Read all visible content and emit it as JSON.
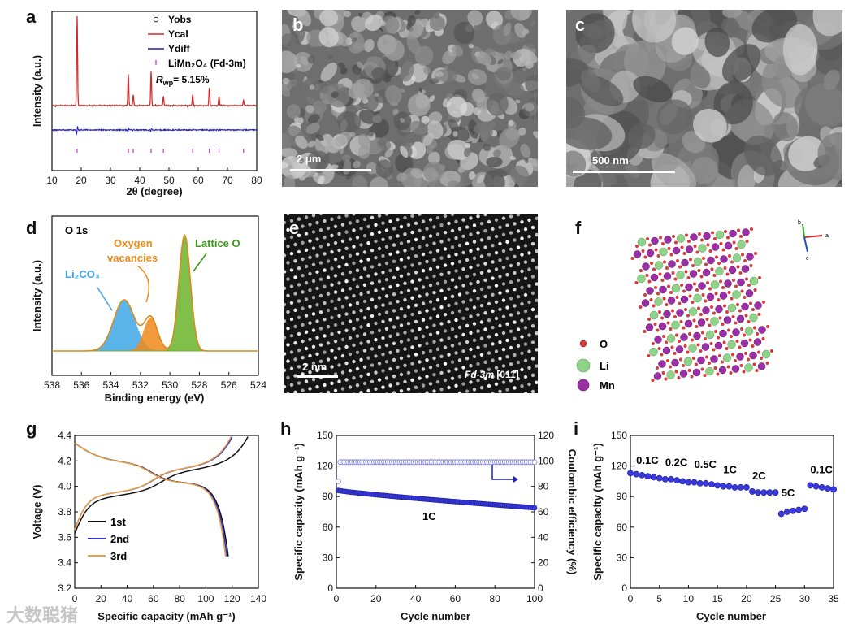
{
  "figure": {
    "panel_letters": [
      "a",
      "b",
      "c",
      "d",
      "e",
      "f",
      "g",
      "h",
      "i"
    ],
    "watermark_text": "大数聪猪"
  },
  "panel_a": {
    "legend": [
      "Yobs",
      "Ycal",
      "Ydiff",
      "LiMn₂O₄ (Fd-3m)"
    ],
    "rwp_label": "R",
    "rwp_sub": "wp",
    "rwp_value": "= 5.15%",
    "colors": {
      "obs": "#333333",
      "cal": "#d62728",
      "diff": "#1f1fbf",
      "bragg": "#cc33cc"
    }
  },
  "panel_b": {
    "scale_label": "2 μm"
  },
  "panel_c": {
    "scale_label": "500 nm"
  },
  "panel_d": {
    "title": "O 1s",
    "annotations": {
      "li2co3": "Li₂CO₃",
      "oxygen": "Oxygen",
      "vacancies": "vacancies",
      "lattice": "Lattice O"
    },
    "colors": {
      "li2co3": "#3ea6e6",
      "vac": "#f08a1c",
      "lattice": "#6ab52a",
      "envelope": "#d88a1a"
    }
  },
  "panel_e": {
    "scale_label": "2 nm",
    "caption_italic": "Fd-3m",
    "caption_rest": " [011]"
  },
  "panel_f": {
    "legend": [
      "O",
      "Li",
      "Mn"
    ],
    "axes": [
      "a",
      "b",
      "c"
    ],
    "colors": {
      "O": "#d93a3a",
      "Li": "#8fd38a",
      "Mn": "#9b2fa6"
    }
  },
  "chart_data": [
    {
      "id": "a",
      "type": "line",
      "title": "",
      "xlabel": "2θ (degree)",
      "ylabel": "Intensity (a.u.)",
      "xlim": [
        10,
        80
      ],
      "xticks": [
        10,
        20,
        30,
        40,
        50,
        60,
        70,
        80
      ],
      "peaks": [
        {
          "x": 18.6,
          "h": 1.0
        },
        {
          "x": 36.1,
          "h": 0.35
        },
        {
          "x": 37.8,
          "h": 0.12
        },
        {
          "x": 43.9,
          "h": 0.38
        },
        {
          "x": 48.1,
          "h": 0.1
        },
        {
          "x": 58.1,
          "h": 0.12
        },
        {
          "x": 63.8,
          "h": 0.2
        },
        {
          "x": 67.1,
          "h": 0.1
        },
        {
          "x": 75.5,
          "h": 0.06
        }
      ]
    },
    {
      "id": "d",
      "type": "area",
      "xlabel": "Binding energy (eV)",
      "ylabel": "Intensity (a.u.)",
      "xlim": [
        538,
        524
      ],
      "xticks": [
        538,
        536,
        534,
        532,
        530,
        528,
        526,
        524
      ],
      "components": [
        {
          "name": "Li2CO3",
          "center": 533.1,
          "height": 0.42,
          "width": 1.0
        },
        {
          "name": "Oxygen vacancies",
          "center": 531.3,
          "height": 0.27,
          "width": 0.65
        },
        {
          "name": "Lattice O",
          "center": 529.0,
          "height": 0.95,
          "width": 0.55
        }
      ]
    },
    {
      "id": "g",
      "type": "line",
      "xlabel": "Specific capacity (mAh g⁻¹)",
      "ylabel": "Voltage (V)",
      "xlim": [
        0,
        140
      ],
      "ylim": [
        3.2,
        4.4
      ],
      "xticks": [
        0,
        20,
        40,
        60,
        80,
        100,
        120,
        140
      ],
      "yticks": [
        3.2,
        3.4,
        3.6,
        3.8,
        4.0,
        4.2,
        4.4
      ],
      "series": [
        {
          "name": "1st",
          "color": "#111111",
          "charge_end": 132,
          "discharge_end": 117
        },
        {
          "name": "2nd",
          "color": "#3030d0",
          "charge_end": 120,
          "discharge_end": 116
        },
        {
          "name": "3rd",
          "color": "#e8a040",
          "charge_end": 119,
          "discharge_end": 115
        }
      ]
    },
    {
      "id": "h",
      "type": "scatter",
      "xlabel": "Cycle number",
      "ylabel": "Specific capacity (mAh g⁻¹)",
      "y2label": "Coulombic efficiency (%)",
      "xlim": [
        0,
        100
      ],
      "ylim": [
        0,
        150
      ],
      "y2lim": [
        0,
        120
      ],
      "xticks": [
        0,
        20,
        40,
        60,
        80,
        100
      ],
      "yticks": [
        0,
        30,
        60,
        90,
        120,
        150
      ],
      "y2ticks": [
        0,
        20,
        40,
        60,
        80,
        100,
        120
      ],
      "rate_label": "1C",
      "capacity_start": 96,
      "capacity_end": 79,
      "ce_first": 84,
      "ce_plateau": 99
    },
    {
      "id": "i",
      "type": "scatter",
      "xlabel": "Cycle number",
      "ylabel": "Specific capacity (mAh g⁻¹)",
      "xlim": [
        0,
        35
      ],
      "ylim": [
        0,
        150
      ],
      "xticks": [
        0,
        5,
        10,
        15,
        20,
        25,
        30,
        35
      ],
      "yticks": [
        0,
        30,
        60,
        90,
        120,
        150
      ],
      "rate_labels": [
        "0.1C",
        "0.2C",
        "0.5C",
        "1C",
        "2C",
        "5C",
        "0.1C"
      ],
      "values": [
        113,
        112,
        111,
        110,
        109,
        108,
        107,
        107,
        106,
        105,
        104,
        104,
        103,
        103,
        102,
        101,
        100,
        100,
        99,
        99,
        99,
        95,
        94,
        94,
        94,
        94,
        73,
        75,
        76,
        77,
        78,
        101,
        100,
        99,
        98,
        97
      ]
    }
  ]
}
